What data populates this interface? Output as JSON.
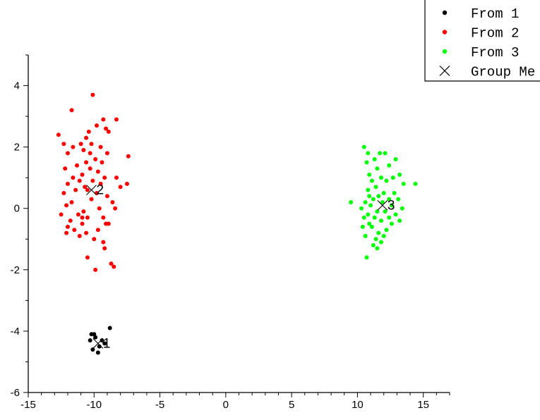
{
  "chart_data": {
    "type": "scatter",
    "xlim": [
      -15,
      17
    ],
    "ylim": [
      -6,
      5
    ],
    "xticks": [
      -15,
      -10,
      -5,
      0,
      5,
      10,
      15
    ],
    "yticks": [
      -6,
      -4,
      -2,
      0,
      2,
      4
    ],
    "grid": false,
    "legend_position": "top-right",
    "series": [
      {
        "name": "From 1",
        "color": "#000000",
        "marker": "circle",
        "points": [
          [
            -10.2,
            -4.1
          ],
          [
            -10.0,
            -4.1
          ],
          [
            -9.9,
            -4.2
          ],
          [
            -10.3,
            -4.3
          ],
          [
            -8.8,
            -3.9
          ],
          [
            -9.4,
            -4.3
          ],
          [
            -9.6,
            -4.5
          ],
          [
            -10.1,
            -4.6
          ],
          [
            -9.7,
            -4.7
          ],
          [
            -9.2,
            -4.4
          ]
        ]
      },
      {
        "name": "From 2",
        "color": "#ff0000",
        "marker": "circle",
        "points": [
          [
            -10.1,
            3.7
          ],
          [
            -11.7,
            3.2
          ],
          [
            -9.3,
            2.9
          ],
          [
            -8.3,
            2.9
          ],
          [
            -12.7,
            2.4
          ],
          [
            -9.8,
            2.7
          ],
          [
            -9.1,
            2.6
          ],
          [
            -10.4,
            2.5
          ],
          [
            -8.9,
            2.5
          ],
          [
            -12.3,
            2.1
          ],
          [
            -11.0,
            2.1
          ],
          [
            -10.2,
            2.1
          ],
          [
            -9.5,
            2.0
          ],
          [
            -9.0,
            1.8
          ],
          [
            -11.6,
            2.0
          ],
          [
            -10.8,
            1.9
          ],
          [
            -12.0,
            1.8
          ],
          [
            -7.4,
            1.7
          ],
          [
            -9.9,
            1.6
          ],
          [
            -10.6,
            1.5
          ],
          [
            -11.3,
            1.4
          ],
          [
            -9.4,
            1.5
          ],
          [
            -12.2,
            1.3
          ],
          [
            -10.3,
            1.3
          ],
          [
            -9.7,
            1.2
          ],
          [
            -10.9,
            1.1
          ],
          [
            -11.6,
            1.0
          ],
          [
            -8.3,
            1.0
          ],
          [
            -9.2,
            1.0
          ],
          [
            -10.1,
            0.9
          ],
          [
            -11.1,
            0.9
          ],
          [
            -12.0,
            0.8
          ],
          [
            -10.7,
            0.7
          ],
          [
            -9.5,
            0.8
          ],
          [
            -7.5,
            0.8
          ],
          [
            -8.0,
            0.7
          ],
          [
            -11.4,
            0.6
          ],
          [
            -10.5,
            0.6
          ],
          [
            -9.8,
            0.5
          ],
          [
            -12.3,
            0.5
          ],
          [
            -9.0,
            0.4
          ],
          [
            -10.2,
            0.3
          ],
          [
            -11.7,
            0.2
          ],
          [
            -8.6,
            0.2
          ],
          [
            -12.1,
            0.1
          ],
          [
            -9.6,
            0.0
          ],
          [
            -10.8,
            -0.1
          ],
          [
            -8.4,
            0.0
          ],
          [
            -11.2,
            -0.2
          ],
          [
            -12.5,
            -0.2
          ],
          [
            -9.3,
            -0.3
          ],
          [
            -10.5,
            -0.3
          ],
          [
            -11.8,
            -0.4
          ],
          [
            -9.1,
            -0.5
          ],
          [
            -8.9,
            -0.5
          ],
          [
            -10.9,
            -0.5
          ],
          [
            -12.0,
            -0.6
          ],
          [
            -9.7,
            -0.7
          ],
          [
            -11.5,
            -0.7
          ],
          [
            -10.6,
            -0.8
          ],
          [
            -11.1,
            -0.9
          ],
          [
            -10.0,
            -1.0
          ],
          [
            -12.1,
            -0.8
          ],
          [
            -9.3,
            -1.1
          ],
          [
            -9.2,
            -1.3
          ],
          [
            -10.5,
            -1.6
          ],
          [
            -8.7,
            -1.8
          ],
          [
            -8.5,
            -1.9
          ],
          [
            -9.9,
            -2.0
          ],
          [
            -10.9,
            -0.3
          ],
          [
            -10.3,
            1.8
          ],
          [
            -10.6,
            2.3
          ]
        ]
      },
      {
        "name": "From 3",
        "color": "#00ff00",
        "marker": "circle",
        "points": [
          [
            10.5,
            2.0
          ],
          [
            10.8,
            1.8
          ],
          [
            11.7,
            1.8
          ],
          [
            12.1,
            1.8
          ],
          [
            11.3,
            1.6
          ],
          [
            12.9,
            1.6
          ],
          [
            10.7,
            1.5
          ],
          [
            12.4,
            1.4
          ],
          [
            11.5,
            1.3
          ],
          [
            13.2,
            1.1
          ],
          [
            10.9,
            1.1
          ],
          [
            11.8,
            1.0
          ],
          [
            12.7,
            1.0
          ],
          [
            11.1,
            0.9
          ],
          [
            12.2,
            0.9
          ],
          [
            14.4,
            0.8
          ],
          [
            13.5,
            0.8
          ],
          [
            11.4,
            0.7
          ],
          [
            10.8,
            0.6
          ],
          [
            12.0,
            0.5
          ],
          [
            12.8,
            0.5
          ],
          [
            11.6,
            0.4
          ],
          [
            10.9,
            0.4
          ],
          [
            12.4,
            0.3
          ],
          [
            11.2,
            0.3
          ],
          [
            13.1,
            0.3
          ],
          [
            10.6,
            0.2
          ],
          [
            9.5,
            0.2
          ],
          [
            11.9,
            0.2
          ],
          [
            12.6,
            0.1
          ],
          [
            11.0,
            0.1
          ],
          [
            10.3,
            0.0
          ],
          [
            13.4,
            0.0
          ],
          [
            11.5,
            -0.1
          ],
          [
            12.1,
            -0.1
          ],
          [
            10.8,
            -0.2
          ],
          [
            12.9,
            -0.2
          ],
          [
            11.3,
            -0.3
          ],
          [
            10.5,
            -0.3
          ],
          [
            12.4,
            -0.3
          ],
          [
            13.2,
            -0.4
          ],
          [
            11.8,
            -0.4
          ],
          [
            10.9,
            -0.5
          ],
          [
            12.6,
            -0.5
          ],
          [
            11.1,
            -0.6
          ],
          [
            10.4,
            -0.6
          ],
          [
            12.2,
            -0.7
          ],
          [
            11.6,
            -0.8
          ],
          [
            12.0,
            -0.9
          ],
          [
            11.4,
            -1.0
          ],
          [
            11.8,
            -1.1
          ],
          [
            11.2,
            -1.2
          ],
          [
            11.5,
            -1.3
          ],
          [
            10.7,
            -1.6
          ],
          [
            10.6,
            -0.9
          ]
        ]
      },
      {
        "name": "Group Me",
        "color": "#000000",
        "marker": "x",
        "points": [
          [
            -9.7,
            -4.4
          ],
          [
            -10.2,
            0.6
          ],
          [
            11.9,
            0.1
          ]
        ],
        "labels": [
          "1",
          "2",
          "3"
        ]
      }
    ]
  }
}
